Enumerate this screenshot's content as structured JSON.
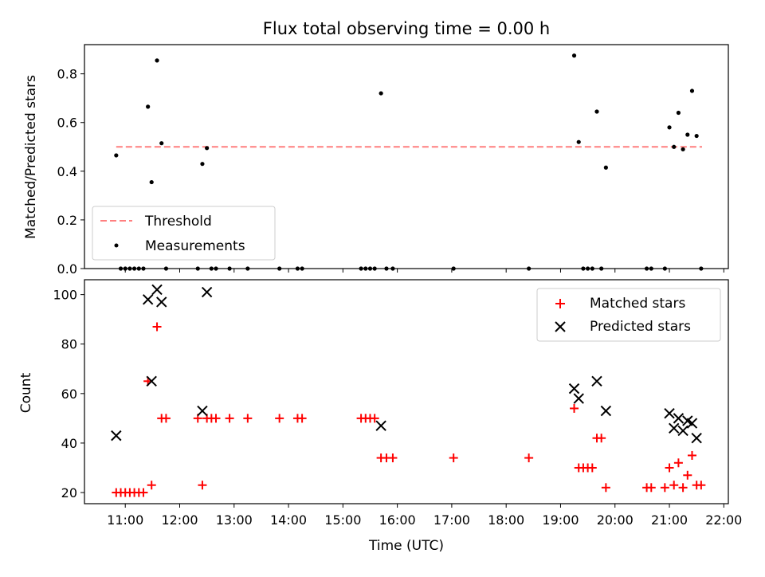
{
  "chart_data": [
    {
      "type": "scatter",
      "title": "Flux total observing time = 0.00 h",
      "xlabel": "",
      "ylabel": "Matched/Predicted stars",
      "ylim": [
        0,
        0.92
      ],
      "yticks": [
        "0.0",
        "0.2",
        "0.4",
        "0.6",
        "0.8"
      ],
      "legend": {
        "placement": "lower-left",
        "entries": [
          "Threshold",
          "Measurements"
        ]
      },
      "series": [
        {
          "name": "Threshold",
          "style": "dashed-line",
          "color": "#ff7f7f",
          "points": [
            [
              "10:50",
              0.5
            ],
            [
              "21:36",
              0.5
            ]
          ]
        },
        {
          "name": "Measurements",
          "style": "dot",
          "color": "#000000",
          "points": [
            [
              "10:50",
              0.465
            ],
            [
              "10:55",
              0
            ],
            [
              "11:00",
              0
            ],
            [
              "11:05",
              0
            ],
            [
              "11:10",
              0
            ],
            [
              "11:15",
              0
            ],
            [
              "11:20",
              0
            ],
            [
              "11:25",
              0.665
            ],
            [
              "11:29",
              0.355
            ],
            [
              "11:35",
              0.855
            ],
            [
              "11:40",
              0.515
            ],
            [
              "11:45",
              0
            ],
            [
              "12:20",
              0
            ],
            [
              "12:25",
              0.43
            ],
            [
              "12:30",
              0.495
            ],
            [
              "12:35",
              0
            ],
            [
              "12:40",
              0
            ],
            [
              "12:55",
              0
            ],
            [
              "13:15",
              0
            ],
            [
              "13:50",
              0
            ],
            [
              "14:10",
              0
            ],
            [
              "14:15",
              0
            ],
            [
              "15:20",
              0
            ],
            [
              "15:25",
              0
            ],
            [
              "15:30",
              0
            ],
            [
              "15:35",
              0
            ],
            [
              "15:42",
              0.72
            ],
            [
              "15:48",
              0
            ],
            [
              "15:55",
              0
            ],
            [
              "17:02",
              0
            ],
            [
              "18:25",
              0
            ],
            [
              "19:15",
              0.875
            ],
            [
              "19:20",
              0.52
            ],
            [
              "19:25",
              0
            ],
            [
              "19:30",
              0
            ],
            [
              "19:35",
              0
            ],
            [
              "19:40",
              0.645
            ],
            [
              "19:45",
              0
            ],
            [
              "19:50",
              0.415
            ],
            [
              "20:35",
              0
            ],
            [
              "20:40",
              0
            ],
            [
              "20:55",
              0
            ],
            [
              "21:00",
              0.58
            ],
            [
              "21:05",
              0.5
            ],
            [
              "21:10",
              0.64
            ],
            [
              "21:15",
              0.49
            ],
            [
              "21:20",
              0.55
            ],
            [
              "21:25",
              0.73
            ],
            [
              "21:30",
              0.545
            ],
            [
              "21:35",
              0
            ]
          ]
        }
      ]
    },
    {
      "type": "scatter",
      "title": "",
      "xlabel": "Time (UTC)",
      "ylabel": "Count",
      "ylim": [
        15.5,
        106
      ],
      "yticks": [
        "20",
        "40",
        "60",
        "80",
        "100"
      ],
      "xlim": [
        "10:15",
        "22:05"
      ],
      "xticks": [
        "11:00",
        "12:00",
        "13:00",
        "14:00",
        "15:00",
        "16:00",
        "17:00",
        "18:00",
        "19:00",
        "20:00",
        "21:00",
        "22:00"
      ],
      "legend": {
        "placement": "upper-right",
        "entries": [
          "Matched stars",
          "Predicted stars"
        ]
      },
      "series": [
        {
          "name": "Matched stars",
          "style": "plus",
          "color": "#ff0000",
          "points": [
            [
              "10:50",
              20
            ],
            [
              "10:55",
              20
            ],
            [
              "11:00",
              20
            ],
            [
              "11:05",
              20
            ],
            [
              "11:10",
              20
            ],
            [
              "11:15",
              20
            ],
            [
              "11:20",
              20
            ],
            [
              "11:25",
              65
            ],
            [
              "11:29",
              23
            ],
            [
              "11:35",
              87
            ],
            [
              "11:40",
              50
            ],
            [
              "11:45",
              50
            ],
            [
              "12:20",
              50
            ],
            [
              "12:25",
              23
            ],
            [
              "12:30",
              50
            ],
            [
              "12:35",
              50
            ],
            [
              "12:40",
              50
            ],
            [
              "12:55",
              50
            ],
            [
              "13:15",
              50
            ],
            [
              "13:50",
              50
            ],
            [
              "14:10",
              50
            ],
            [
              "14:15",
              50
            ],
            [
              "15:20",
              50
            ],
            [
              "15:25",
              50
            ],
            [
              "15:30",
              50
            ],
            [
              "15:35",
              50
            ],
            [
              "15:42",
              34
            ],
            [
              "15:48",
              34
            ],
            [
              "15:55",
              34
            ],
            [
              "17:02",
              34
            ],
            [
              "18:25",
              34
            ],
            [
              "19:15",
              54
            ],
            [
              "19:20",
              30
            ],
            [
              "19:25",
              30
            ],
            [
              "19:30",
              30
            ],
            [
              "19:35",
              30
            ],
            [
              "19:40",
              42
            ],
            [
              "19:45",
              42
            ],
            [
              "19:50",
              22
            ],
            [
              "20:35",
              22
            ],
            [
              "20:40",
              22
            ],
            [
              "20:55",
              22
            ],
            [
              "21:00",
              30
            ],
            [
              "21:05",
              23
            ],
            [
              "21:10",
              32
            ],
            [
              "21:15",
              22
            ],
            [
              "21:20",
              27
            ],
            [
              "21:25",
              35
            ],
            [
              "21:30",
              23
            ],
            [
              "21:35",
              23
            ]
          ]
        },
        {
          "name": "Predicted stars",
          "style": "x",
          "color": "#000000",
          "points": [
            [
              "10:50",
              43
            ],
            [
              "11:25",
              98
            ],
            [
              "11:29",
              65
            ],
            [
              "11:35",
              102
            ],
            [
              "11:40",
              97
            ],
            [
              "12:25",
              53
            ],
            [
              "12:30",
              101
            ],
            [
              "15:42",
              47
            ],
            [
              "19:15",
              62
            ],
            [
              "19:20",
              58
            ],
            [
              "19:40",
              65
            ],
            [
              "19:50",
              53
            ],
            [
              "21:00",
              52
            ],
            [
              "21:05",
              46
            ],
            [
              "21:10",
              50
            ],
            [
              "21:15",
              45
            ],
            [
              "21:20",
              49
            ],
            [
              "21:25",
              48
            ],
            [
              "21:30",
              42
            ]
          ]
        }
      ]
    }
  ]
}
